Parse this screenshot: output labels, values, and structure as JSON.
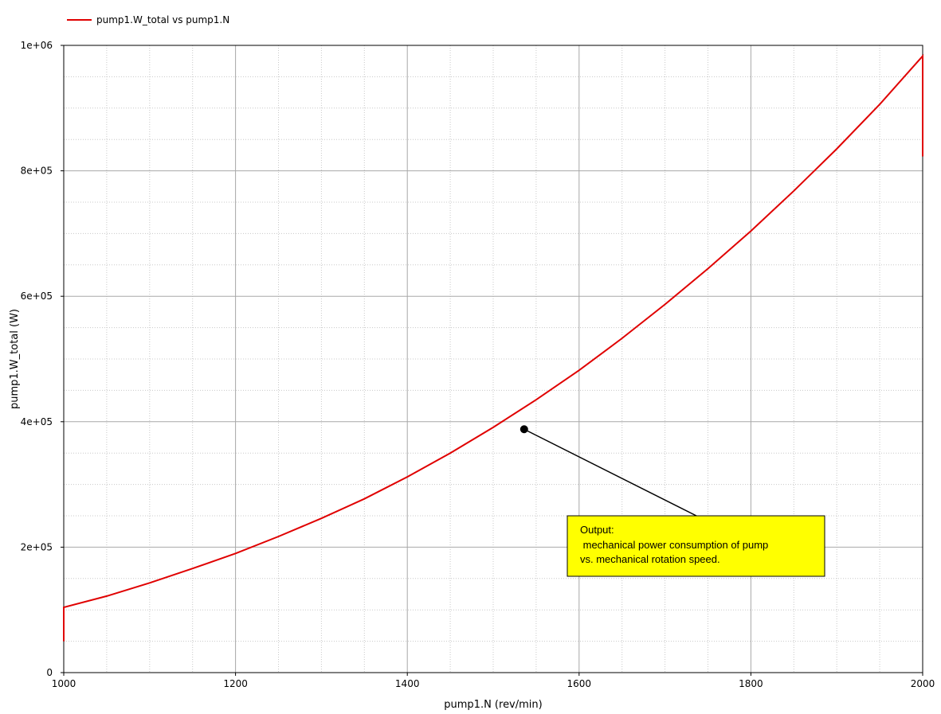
{
  "chart_data": {
    "type": "line",
    "legend": {
      "label": "pump1.W_total vs pump1.N",
      "placement": "top-left"
    },
    "xlabel": "pump1.N (rev/min)",
    "ylabel": "pump1.W_total (W)",
    "xlim": [
      1000,
      2000
    ],
    "ylim": [
      0,
      1000000
    ],
    "x_ticks": [
      1000,
      1200,
      1400,
      1600,
      1800,
      2000
    ],
    "x_tick_labels": [
      "1000",
      "1200",
      "1400",
      "1600",
      "1800",
      "2000"
    ],
    "y_ticks": [
      0,
      200000,
      400000,
      600000,
      800000,
      1000000
    ],
    "y_tick_labels": [
      "0",
      "2e+05",
      "4e+05",
      "6e+05",
      "8e+05",
      "1e+06"
    ],
    "grid": true,
    "series": [
      {
        "name": "pump1.W_total vs pump1.N",
        "color": "#e00000",
        "x": [
          1000,
          1000,
          1050,
          1100,
          1150,
          1200,
          1250,
          1300,
          1350,
          1400,
          1450,
          1500,
          1550,
          1600,
          1650,
          1700,
          1750,
          1800,
          1850,
          1900,
          1950,
          2000,
          2000
        ],
        "y": [
          50000,
          104000,
          122000,
          143000,
          166000,
          190000,
          217000,
          246000,
          277000,
          312000,
          350000,
          391000,
          435000,
          482000,
          533000,
          587000,
          644000,
          704000,
          768000,
          835000,
          906000,
          983000,
          823000
        ]
      }
    ],
    "annotation": {
      "lines": [
        "Output:",
        " mechanical power consumption of pump",
        "vs. mechanical rotation speed."
      ],
      "point_x": 1536,
      "point_y": 388000,
      "box_fill": "#ffff00",
      "box_border": "#000000"
    }
  }
}
